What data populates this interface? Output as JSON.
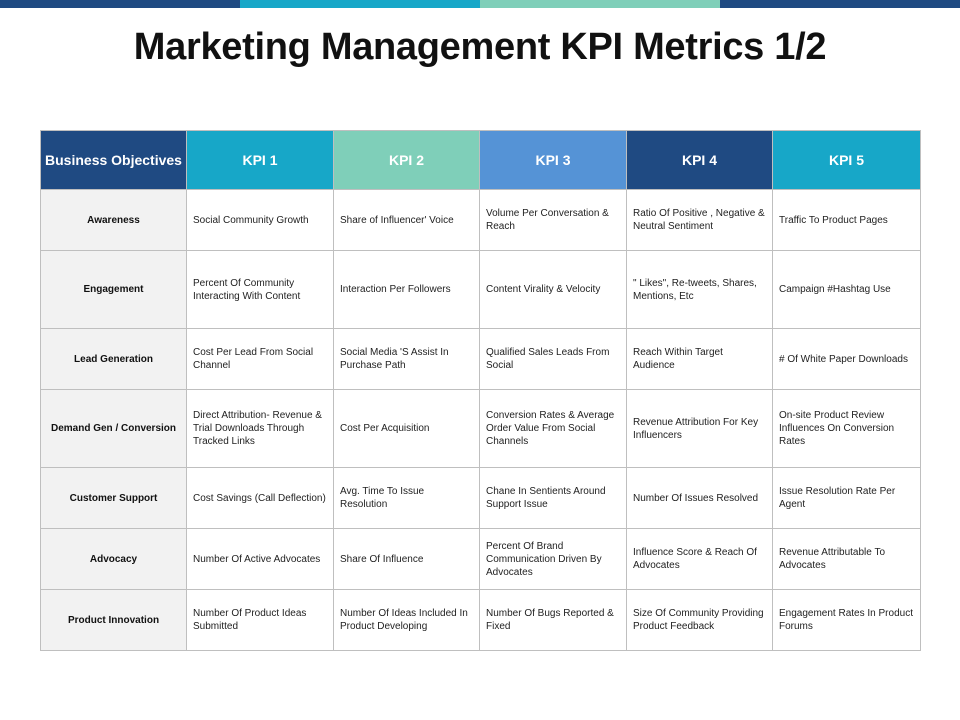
{
  "colors": {
    "navy": "#1f4a82",
    "teal": "#17a7c8",
    "mint": "#7fcfb9",
    "blue": "#5593d6",
    "row_label_bg": "#f2f2f2",
    "border": "#bfbfbf"
  },
  "title": "Marketing Management KPI Metrics 1/2",
  "table": {
    "headers": [
      "Business Objectives",
      "KPI 1",
      "KPI 2",
      "KPI 3",
      "KPI 4",
      "KPI 5"
    ],
    "rows": [
      {
        "objective": "Awareness",
        "kpis": [
          "Social Community Growth",
          "Share of Influencer' Voice",
          "Volume Per Conversation & Reach",
          "Ratio Of Positive , Negative & Neutral Sentiment",
          "Traffic To Product Pages"
        ]
      },
      {
        "objective": "Engagement",
        "kpis": [
          "Percent Of Community Interacting With Content",
          "Interaction Per Followers",
          "Content Virality & Velocity",
          "\" Likes\", Re-tweets, Shares, Mentions, Etc",
          "Campaign #Hashtag Use"
        ]
      },
      {
        "objective": "Lead Generation",
        "kpis": [
          "Cost Per Lead From Social Channel",
          "Social Media 'S Assist In Purchase Path",
          "Qualified Sales Leads From Social",
          "Reach Within Target Audience",
          "# Of White Paper Downloads"
        ]
      },
      {
        "objective": "Demand Gen / Conversion",
        "kpis": [
          "Direct Attribution- Revenue & Trial Downloads Through Tracked Links",
          "Cost Per Acquisition",
          "Conversion Rates & Average Order Value From Social Channels",
          "Revenue Attribution For Key Influencers",
          "On-site Product Review Influences On Conversion Rates"
        ]
      },
      {
        "objective": "Customer Support",
        "kpis": [
          "Cost Savings (Call Deflection)",
          "Avg. Time To Issue Resolution",
          "Chane In Sentients Around Support Issue",
          "Number Of Issues Resolved",
          "Issue Resolution Rate Per Agent"
        ]
      },
      {
        "objective": "Advocacy",
        "kpis": [
          "Number Of Active Advocates",
          "Share Of Influence",
          "Percent Of Brand Communication Driven By Advocates",
          "Influence Score & Reach Of Advocates",
          "Revenue Attributable To Advocates"
        ]
      },
      {
        "objective": "Product Innovation",
        "kpis": [
          "Number Of Product Ideas Submitted",
          "Number Of Ideas Included In Product Developing",
          "Number Of Bugs Reported & Fixed",
          "Size Of Community Providing Product Feedback",
          "Engagement Rates In Product Forums"
        ]
      }
    ]
  }
}
